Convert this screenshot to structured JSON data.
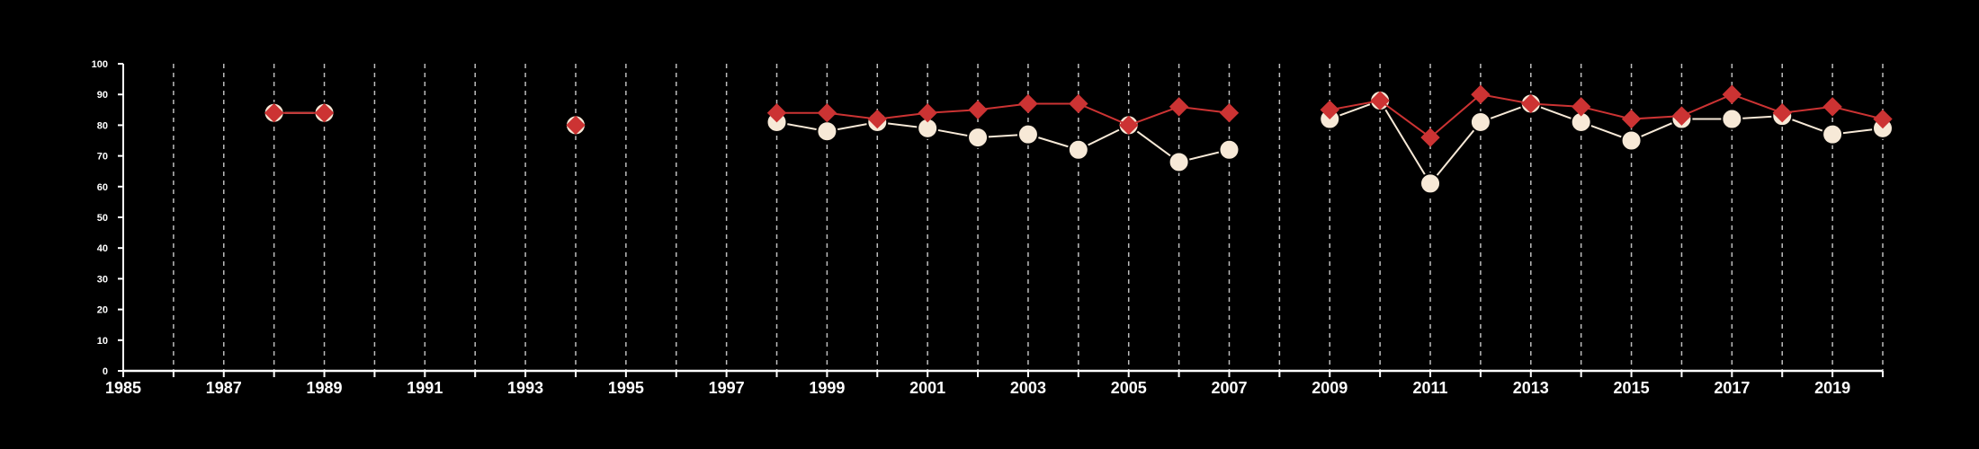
{
  "chart_data": {
    "type": "line",
    "title": "",
    "xlabel": "",
    "ylabel": "",
    "xlim": [
      1985,
      2020
    ],
    "ylim": [
      0,
      100
    ],
    "x_ticks": [
      1985,
      1987,
      1989,
      1991,
      1993,
      1995,
      1997,
      1999,
      2001,
      2003,
      2005,
      2007,
      2009,
      2011,
      2013,
      2015,
      2017,
      2019
    ],
    "y_ticks": [
      0,
      10,
      20,
      30,
      40,
      50,
      60,
      70,
      80,
      90,
      100
    ],
    "vertical_grid": "dashed, every year",
    "legend": "none",
    "background": "#000000",
    "series": [
      {
        "color": "#f7e9d7",
        "marker": "circle",
        "values": [
          [
            1988,
            84
          ],
          [
            1989,
            84
          ],
          [
            1994,
            80
          ],
          [
            1998,
            81
          ],
          [
            1999,
            78
          ],
          [
            2000,
            81
          ],
          [
            2001,
            79
          ],
          [
            2002,
            76
          ],
          [
            2003,
            77
          ],
          [
            2004,
            72
          ],
          [
            2005,
            80
          ],
          [
            2006,
            68
          ],
          [
            2007,
            72
          ],
          [
            2009,
            82
          ],
          [
            2010,
            88
          ],
          [
            2011,
            61
          ],
          [
            2012,
            81
          ],
          [
            2013,
            87
          ],
          [
            2014,
            81
          ],
          [
            2015,
            75
          ],
          [
            2016,
            82
          ],
          [
            2017,
            82
          ],
          [
            2018,
            83
          ],
          [
            2019,
            77
          ],
          [
            2020,
            79
          ]
        ]
      },
      {
        "color": "#cc3333",
        "marker": "diamond",
        "values": [
          [
            1988,
            84
          ],
          [
            1989,
            84
          ],
          [
            1994,
            80
          ],
          [
            1998,
            84
          ],
          [
            1999,
            84
          ],
          [
            2000,
            82
          ],
          [
            2001,
            84
          ],
          [
            2002,
            85
          ],
          [
            2003,
            87
          ],
          [
            2004,
            87
          ],
          [
            2005,
            80
          ],
          [
            2006,
            86
          ],
          [
            2007,
            84
          ],
          [
            2009,
            85
          ],
          [
            2010,
            88
          ],
          [
            2011,
            76
          ],
          [
            2012,
            90
          ],
          [
            2013,
            87
          ],
          [
            2014,
            86
          ],
          [
            2015,
            82
          ],
          [
            2016,
            83
          ],
          [
            2017,
            90
          ],
          [
            2018,
            84
          ],
          [
            2019,
            86
          ],
          [
            2020,
            82
          ]
        ]
      }
    ]
  }
}
